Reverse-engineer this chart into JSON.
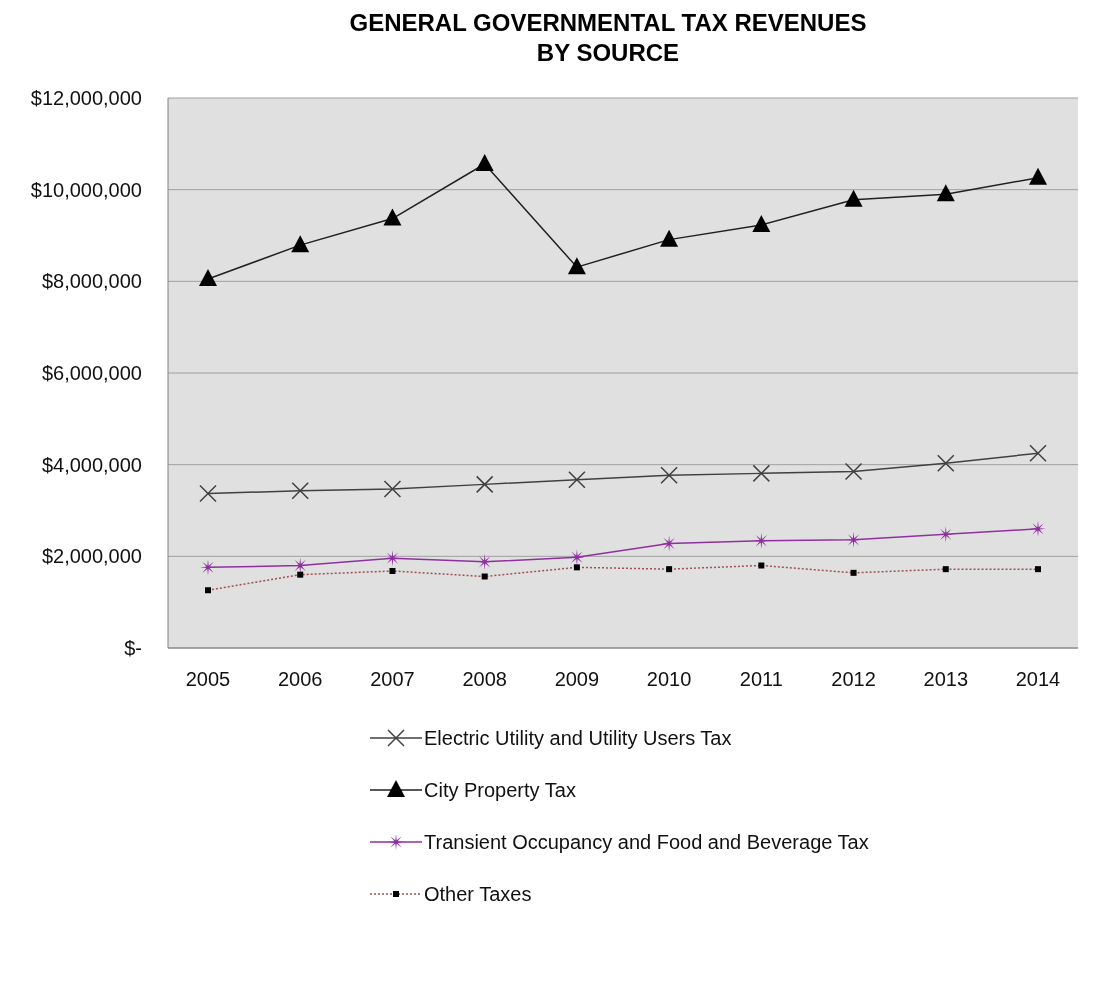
{
  "chart_data": {
    "type": "line",
    "title": "GENERAL GOVERNMENTAL TAX REVENUES\nBY SOURCE",
    "categories": [
      "2005",
      "2006",
      "2007",
      "2008",
      "2009",
      "2010",
      "2011",
      "2012",
      "2013",
      "2014"
    ],
    "series": [
      {
        "name": "Electric Utility and Utility Users Tax",
        "color": "#404040",
        "marker": "cross",
        "line_style": "solid",
        "values": [
          3370000,
          3430000,
          3470000,
          3570000,
          3670000,
          3770000,
          3810000,
          3850000,
          4030000,
          4250000
        ]
      },
      {
        "name": "City Property Tax",
        "color": "#202020",
        "marker": "triangle",
        "line_style": "solid",
        "values": [
          8050000,
          8790000,
          9370000,
          10560000,
          8310000,
          8910000,
          9230000,
          9780000,
          9900000,
          10260000
        ]
      },
      {
        "name": "Transient Occupancy and Food and Beverage Tax",
        "color": "#9030a0",
        "marker": "star",
        "line_style": "solid",
        "values": [
          1760000,
          1800000,
          1960000,
          1880000,
          1980000,
          2280000,
          2340000,
          2360000,
          2480000,
          2600000
        ]
      },
      {
        "name": "Other Taxes",
        "color": "#a05050",
        "marker": "square",
        "line_style": "dotted",
        "values": [
          1260000,
          1600000,
          1680000,
          1560000,
          1760000,
          1720000,
          1800000,
          1640000,
          1720000,
          1720000
        ]
      }
    ],
    "ylim": [
      0,
      12000000
    ],
    "yticks": [
      {
        "value": 0,
        "label": "$-"
      },
      {
        "value": 2000000,
        "label": "$2,000,000"
      },
      {
        "value": 4000000,
        "label": "$4,000,000"
      },
      {
        "value": 6000000,
        "label": "$6,000,000"
      },
      {
        "value": 8000000,
        "label": "$8,000,000"
      },
      {
        "value": 10000000,
        "label": "$10,000,000"
      },
      {
        "value": 12000000,
        "label": "$12,000,000"
      }
    ],
    "grid": "y",
    "legend": "bottom"
  }
}
